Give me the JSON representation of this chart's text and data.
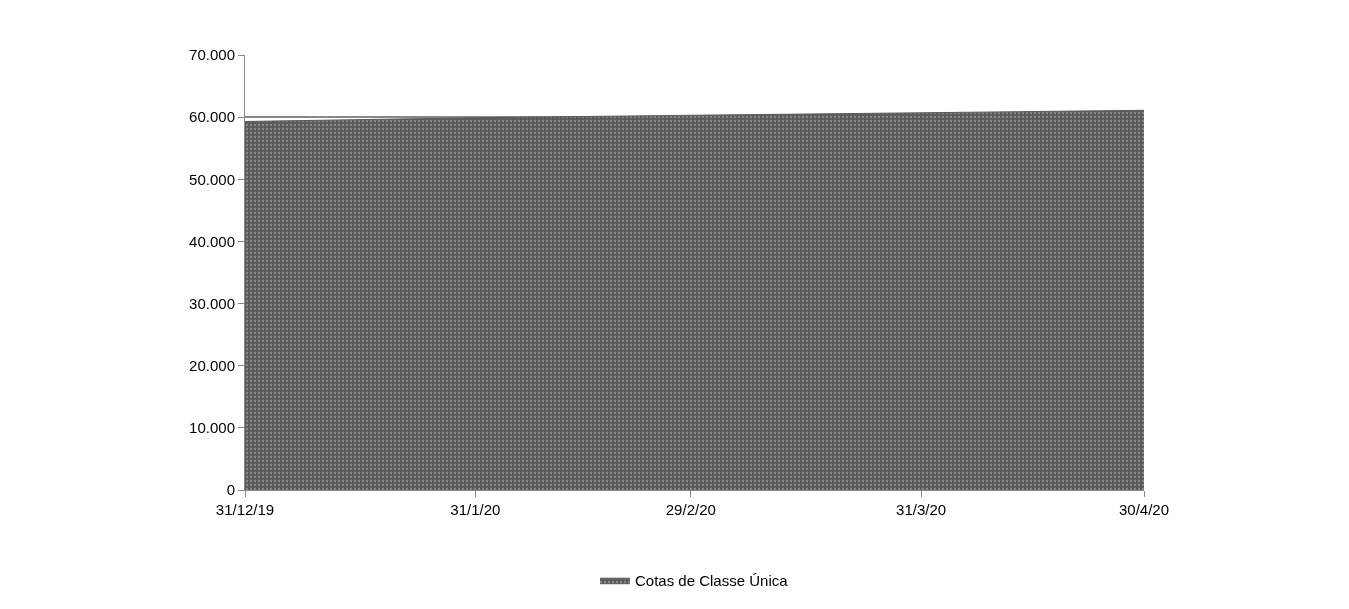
{
  "chart_data": {
    "type": "area",
    "x": [
      "2019-12-31",
      "2020-01-31",
      "2020-02-29",
      "2020-03-31",
      "2020-04-30"
    ],
    "series": [
      {
        "name": "Cotas de Classe Única",
        "color": "#5a5a5a",
        "values": [
          59300,
          59900,
          60300,
          60700,
          61100
        ]
      }
    ],
    "ylim": [
      0,
      70000
    ],
    "yticks": [
      {
        "value": 0,
        "label": "0"
      },
      {
        "value": 10000,
        "label": "10.000"
      },
      {
        "value": 20000,
        "label": "20.000"
      },
      {
        "value": 30000,
        "label": "30.000"
      },
      {
        "value": 40000,
        "label": "40.000"
      },
      {
        "value": 50000,
        "label": "50.000"
      },
      {
        "value": 60000,
        "label": "60.000"
      },
      {
        "value": 70000,
        "label": "70.000"
      }
    ],
    "xlim": [
      "2019-12-31",
      "2020-04-30"
    ],
    "xticks": [
      {
        "value": "2019-12-31",
        "label": "31/12/19"
      },
      {
        "value": "2020-01-31",
        "label": "31/1/20"
      },
      {
        "value": "2020-02-29",
        "label": "29/2/20"
      },
      {
        "value": "2020-03-31",
        "label": "31/3/20"
      },
      {
        "value": "2020-04-30",
        "label": "30/4/20"
      }
    ],
    "grid": "y",
    "legend": "bottom"
  }
}
